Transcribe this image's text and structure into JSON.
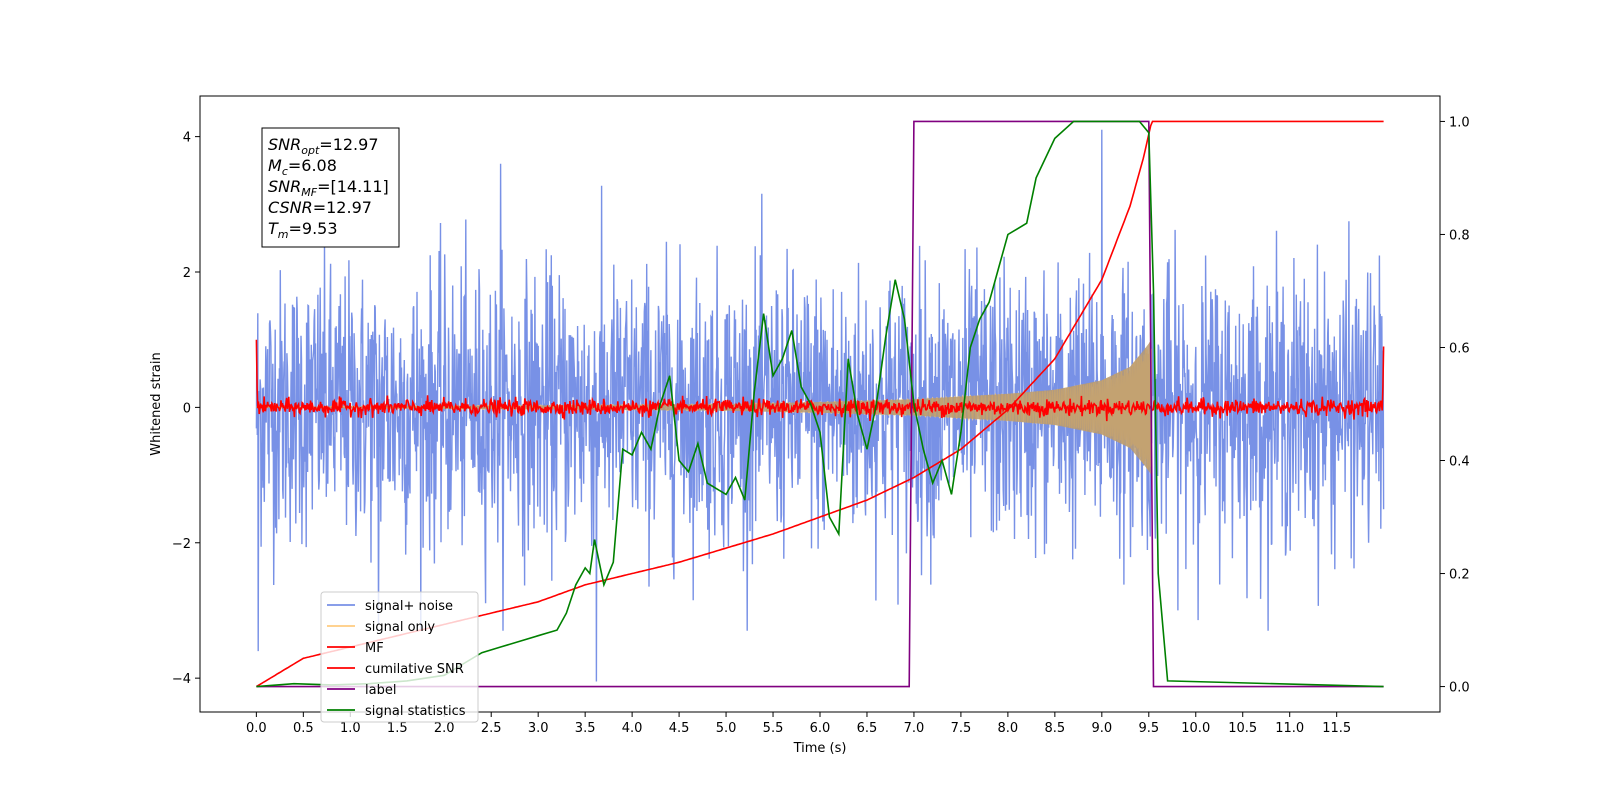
{
  "chart_data": {
    "type": "line",
    "title": "",
    "xlabel": "Time (s)",
    "ylabel": "Whitened strain",
    "y2label": "",
    "xlim": [
      -0.6,
      12.6
    ],
    "ylim": [
      -4.5,
      4.6
    ],
    "y2lim": [
      -0.045,
      1.045
    ],
    "x_ticks": [
      "0.0",
      "0.5",
      "1.0",
      "1.5",
      "2.0",
      "2.5",
      "3.0",
      "3.5",
      "4.0",
      "4.5",
      "5.0",
      "5.5",
      "6.0",
      "6.5",
      "7.0",
      "7.5",
      "8.0",
      "8.5",
      "9.0",
      "9.5",
      "10.0",
      "10.5",
      "11.0",
      "11.5"
    ],
    "y_ticks": [
      "−4",
      "−2",
      "0",
      "2",
      "4"
    ],
    "y2_ticks": [
      "0.0",
      "0.2",
      "0.4",
      "0.6",
      "0.8",
      "1.0"
    ],
    "grid": false,
    "legend_position": "lower-left",
    "annotation": {
      "lines": [
        {
          "base": "SNR",
          "sub": "opt",
          "value": "=12.97"
        },
        {
          "base": "M",
          "sub": "c",
          "value": "=6.08"
        },
        {
          "base": "SNR",
          "sub": "MF",
          "value": "=[14.11]"
        },
        {
          "base": "CSNR",
          "sub": "",
          "value": "=12.97"
        },
        {
          "base": "T",
          "sub": "m",
          "value": "=9.53"
        }
      ]
    },
    "series": [
      {
        "name": "signal+ noise",
        "color": "#7891e6",
        "axis": "left",
        "x_start": 0.0,
        "x_end": 12.0,
        "noise_std": 1.0,
        "noise_extremes": [
          [
            0.02,
            -3.6
          ],
          [
            3.62,
            -4.05
          ],
          [
            9.0,
            4.1
          ],
          [
            1.3,
            -3.2
          ],
          [
            2.6,
            3.6
          ]
        ]
      },
      {
        "name": "signal only",
        "color": "#ffcc80",
        "axis": "left",
        "x_start": 0.0,
        "x_end": 9.53,
        "envelope": [
          [
            0.0,
            0.01
          ],
          [
            3.0,
            0.03
          ],
          [
            5.0,
            0.05
          ],
          [
            6.0,
            0.08
          ],
          [
            7.0,
            0.12
          ],
          [
            8.0,
            0.2
          ],
          [
            8.5,
            0.26
          ],
          [
            9.0,
            0.4
          ],
          [
            9.3,
            0.6
          ],
          [
            9.45,
            0.85
          ],
          [
            9.53,
            1.0
          ]
        ]
      },
      {
        "name": "MF",
        "color": "#ff0000",
        "axis": "left",
        "x_start": 0.0,
        "x_end": 12.0,
        "noise_std": 0.06,
        "edge_values": [
          [
            0.0,
            1.0
          ],
          [
            12.0,
            0.9
          ]
        ]
      },
      {
        "name": "cumilative SNR",
        "color": "#ff0000",
        "axis": "right",
        "points": [
          [
            0.0,
            0.0
          ],
          [
            0.5,
            0.05
          ],
          [
            1.0,
            0.07
          ],
          [
            1.5,
            0.09
          ],
          [
            2.0,
            0.11
          ],
          [
            2.5,
            0.13
          ],
          [
            3.0,
            0.15
          ],
          [
            3.5,
            0.18
          ],
          [
            4.0,
            0.2
          ],
          [
            4.5,
            0.22
          ],
          [
            5.0,
            0.245
          ],
          [
            5.5,
            0.27
          ],
          [
            6.0,
            0.3
          ],
          [
            6.5,
            0.33
          ],
          [
            7.0,
            0.37
          ],
          [
            7.5,
            0.42
          ],
          [
            8.0,
            0.49
          ],
          [
            8.5,
            0.58
          ],
          [
            9.0,
            0.72
          ],
          [
            9.3,
            0.85
          ],
          [
            9.45,
            0.94
          ],
          [
            9.53,
            1.0
          ],
          [
            12.0,
            1.0
          ]
        ]
      },
      {
        "name": "label",
        "color": "#800080",
        "axis": "right",
        "points": [
          [
            0.0,
            0.0
          ],
          [
            6.95,
            0.0
          ],
          [
            7.0,
            1.0
          ],
          [
            9.5,
            1.0
          ],
          [
            9.55,
            0.0
          ],
          [
            12.0,
            0.0
          ]
        ]
      },
      {
        "name": "signal statistics",
        "color": "#008000",
        "axis": "right",
        "points": [
          [
            0.0,
            0.0
          ],
          [
            0.4,
            0.005
          ],
          [
            0.8,
            0.003
          ],
          [
            1.2,
            0.005
          ],
          [
            1.6,
            0.01
          ],
          [
            2.0,
            0.02
          ],
          [
            2.2,
            0.04
          ],
          [
            2.4,
            0.06
          ],
          [
            2.6,
            0.07
          ],
          [
            2.8,
            0.08
          ],
          [
            3.0,
            0.09
          ],
          [
            3.2,
            0.1
          ],
          [
            3.3,
            0.13
          ],
          [
            3.4,
            0.18
          ],
          [
            3.5,
            0.21
          ],
          [
            3.55,
            0.2
          ],
          [
            3.6,
            0.26
          ],
          [
            3.7,
            0.18
          ],
          [
            3.8,
            0.22
          ],
          [
            3.9,
            0.42
          ],
          [
            4.0,
            0.41
          ],
          [
            4.1,
            0.45
          ],
          [
            4.2,
            0.42
          ],
          [
            4.3,
            0.5
          ],
          [
            4.4,
            0.55
          ],
          [
            4.5,
            0.4
          ],
          [
            4.6,
            0.38
          ],
          [
            4.7,
            0.43
          ],
          [
            4.8,
            0.36
          ],
          [
            4.9,
            0.35
          ],
          [
            5.0,
            0.34
          ],
          [
            5.1,
            0.37
          ],
          [
            5.2,
            0.33
          ],
          [
            5.3,
            0.52
          ],
          [
            5.4,
            0.66
          ],
          [
            5.5,
            0.55
          ],
          [
            5.6,
            0.58
          ],
          [
            5.7,
            0.63
          ],
          [
            5.8,
            0.53
          ],
          [
            5.9,
            0.5
          ],
          [
            6.0,
            0.45
          ],
          [
            6.1,
            0.3
          ],
          [
            6.2,
            0.27
          ],
          [
            6.3,
            0.58
          ],
          [
            6.4,
            0.48
          ],
          [
            6.5,
            0.42
          ],
          [
            6.6,
            0.5
          ],
          [
            6.7,
            0.62
          ],
          [
            6.8,
            0.72
          ],
          [
            6.9,
            0.65
          ],
          [
            7.0,
            0.5
          ],
          [
            7.1,
            0.42
          ],
          [
            7.2,
            0.36
          ],
          [
            7.3,
            0.4
          ],
          [
            7.4,
            0.34
          ],
          [
            7.5,
            0.45
          ],
          [
            7.6,
            0.6
          ],
          [
            7.7,
            0.65
          ],
          [
            7.8,
            0.68
          ],
          [
            7.9,
            0.74
          ],
          [
            8.0,
            0.8
          ],
          [
            8.2,
            0.82
          ],
          [
            8.3,
            0.9
          ],
          [
            8.5,
            0.97
          ],
          [
            8.7,
            1.0
          ],
          [
            9.0,
            1.0
          ],
          [
            9.4,
            1.0
          ],
          [
            9.5,
            0.98
          ],
          [
            9.55,
            0.7
          ],
          [
            9.6,
            0.2
          ],
          [
            9.7,
            0.01
          ],
          [
            12.0,
            0.0
          ]
        ]
      }
    ]
  }
}
